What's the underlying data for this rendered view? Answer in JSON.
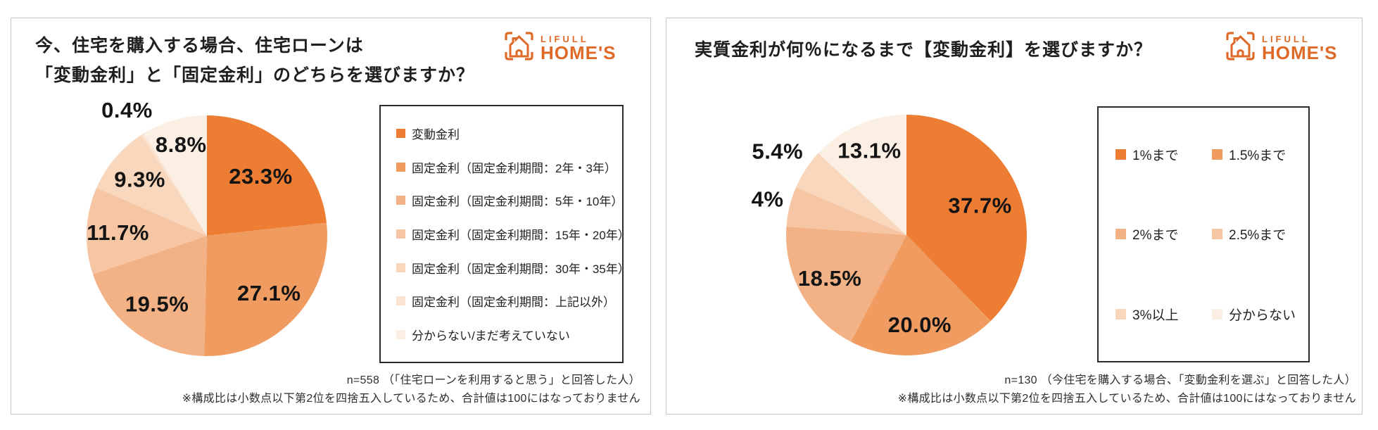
{
  "brand": {
    "name": "LIFULL HOME'S",
    "logo_line1": "LIFULL",
    "logo_line2": "HOME'S",
    "orange": "#DF6A28"
  },
  "panels": [
    {
      "title_lines": [
        "今、住宅を購入する場合、住宅ローンは",
        "「変動金利」と「固定金利」のどちらを選びますか？"
      ],
      "note_line1": "n=558 （「住宅ローンを利用すると思う」と回答した人）",
      "note_line2": "※構成比は小数点以下第2位を四捨五入しているため、合計値は100にはなっておりません"
    },
    {
      "title_lines": [
        "実質金利が何％になるまで【変動金利】を選びますか？"
      ],
      "note_line1": "n=130 （今住宅を購入する場合、「変動金利を選ぶ」と回答した人）",
      "note_line2": "※構成比は小数点以下第2位を四捨五入しているため、合計値は100にはなっておりません"
    }
  ],
  "chart_data": [
    {
      "type": "pie",
      "title": "今、住宅を購入する場合、住宅ローンは「変動金利」と「固定金利」のどちらを選びますか？",
      "sample_note": "n=558 （「住宅ローンを利用すると思う」と回答した人）",
      "start_angle_deg": 0,
      "direction": "clockwise",
      "legend_position": "right",
      "label_format": "percent",
      "labels": [
        "変動金利",
        "固定金利（固定金利期間：2年・3年）",
        "固定金利（固定金利期間：5年・10年）",
        "固定金利（固定金利期間：15年・20年）",
        "固定金利（固定金利期間：30年・35年）",
        "固定金利（固定金利期間：上記以外）",
        "分からない/まだ考えていない"
      ],
      "values": [
        23.3,
        27.1,
        19.5,
        11.7,
        9.3,
        0.4,
        8.8
      ],
      "colors": [
        "#EC7D33",
        "#F09C61",
        "#F3B285",
        "#F6C5A4",
        "#F8D7BD",
        "#FAE4D1",
        "#FBEFE3"
      ]
    },
    {
      "type": "pie",
      "title": "実質金利が何％になるまで【変動金利】を選びますか？",
      "sample_note": "n=130 （今住宅を購入する場合、「変動金利を選ぶ」と回答した人）",
      "start_angle_deg": 0,
      "direction": "clockwise",
      "legend_position": "right",
      "label_format": "percent",
      "labels": [
        "1%まで",
        "1.5%まで",
        "2%まで",
        "2.5%まで",
        "3%以上",
        "分からない"
      ],
      "values": [
        37.7,
        20.0,
        18.5,
        5.4,
        5.4,
        13.1
      ],
      "colors": [
        "#EC7D33",
        "#F09C61",
        "#F3B285",
        "#F6C5A4",
        "#F8D7BD",
        "#FBEFE3"
      ]
    }
  ]
}
